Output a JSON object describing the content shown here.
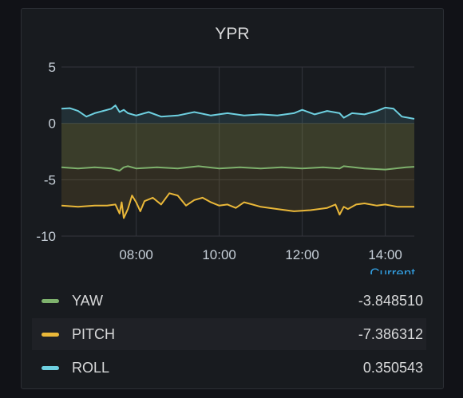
{
  "panel": {
    "title": "YPR"
  },
  "legend": {
    "header": "Current",
    "rows": [
      {
        "name": "YAW",
        "value": "-3.848510",
        "color": "#7eb26d"
      },
      {
        "name": "PITCH",
        "value": "-7.386312",
        "color": "#eab839"
      },
      {
        "name": "ROLL",
        "value": "0.350543",
        "color": "#6ed0e0"
      }
    ]
  },
  "chart_data": {
    "type": "line",
    "title": "YPR",
    "xlabel": "",
    "ylabel": "",
    "xlim": [
      6.2,
      14.7
    ],
    "ylim": [
      -10,
      5
    ],
    "x_ticks": [
      "08:00",
      "10:00",
      "12:00",
      "14:00"
    ],
    "x_tick_values": [
      8,
      10,
      12,
      14
    ],
    "y_ticks": [
      "5",
      "0",
      "-5",
      "-10"
    ],
    "y_tick_values": [
      5,
      0,
      -5,
      -10
    ],
    "grid": true,
    "legend_position": "bottom",
    "series": [
      {
        "name": "ROLL",
        "color": "#6ed0e0",
        "x": [
          6.2,
          6.4,
          6.6,
          6.8,
          7.0,
          7.2,
          7.4,
          7.5,
          7.6,
          7.7,
          7.8,
          8.0,
          8.3,
          8.6,
          9.0,
          9.4,
          9.8,
          10.2,
          10.6,
          11.0,
          11.4,
          11.8,
          12.0,
          12.3,
          12.6,
          12.9,
          13.0,
          13.2,
          13.5,
          13.8,
          14.0,
          14.2,
          14.4,
          14.7
        ],
        "y": [
          1.3,
          1.35,
          1.1,
          0.6,
          0.9,
          1.1,
          1.3,
          1.6,
          1.0,
          1.2,
          0.9,
          0.7,
          1.0,
          0.6,
          0.7,
          1.0,
          0.7,
          0.9,
          0.7,
          0.8,
          0.7,
          0.9,
          1.2,
          0.8,
          1.1,
          0.9,
          0.5,
          0.9,
          0.8,
          1.1,
          1.4,
          1.3,
          0.6,
          0.4
        ]
      },
      {
        "name": "YAW",
        "color": "#7eb26d",
        "x": [
          6.2,
          6.6,
          7.0,
          7.4,
          7.6,
          7.7,
          7.8,
          8.0,
          8.5,
          9.0,
          9.5,
          10.0,
          10.5,
          11.0,
          11.5,
          12.0,
          12.5,
          12.9,
          13.0,
          13.5,
          14.0,
          14.5,
          14.7
        ],
        "y": [
          -3.9,
          -4.0,
          -3.9,
          -4.0,
          -4.2,
          -3.9,
          -3.8,
          -4.0,
          -3.9,
          -4.0,
          -3.8,
          -4.0,
          -3.9,
          -4.0,
          -3.9,
          -4.0,
          -3.9,
          -4.0,
          -3.8,
          -4.0,
          -4.1,
          -3.9,
          -3.85
        ]
      },
      {
        "name": "PITCH",
        "color": "#eab839",
        "x": [
          6.2,
          6.6,
          7.0,
          7.3,
          7.5,
          7.6,
          7.65,
          7.7,
          7.8,
          7.9,
          8.0,
          8.1,
          8.2,
          8.4,
          8.6,
          8.8,
          9.0,
          9.2,
          9.4,
          9.6,
          9.8,
          10.0,
          10.2,
          10.4,
          10.6,
          10.8,
          11.0,
          11.4,
          11.8,
          12.2,
          12.6,
          12.8,
          12.9,
          13.0,
          13.1,
          13.3,
          13.5,
          13.8,
          14.0,
          14.3,
          14.7
        ],
        "y": [
          -7.3,
          -7.4,
          -7.3,
          -7.3,
          -7.2,
          -8.0,
          -7.0,
          -8.4,
          -7.6,
          -6.4,
          -7.0,
          -7.8,
          -6.9,
          -6.6,
          -7.2,
          -6.2,
          -6.4,
          -7.3,
          -6.8,
          -6.6,
          -7.0,
          -7.3,
          -7.2,
          -7.5,
          -7.0,
          -7.2,
          -7.4,
          -7.6,
          -7.8,
          -7.7,
          -7.5,
          -7.2,
          -8.1,
          -7.4,
          -7.6,
          -7.2,
          -7.1,
          -7.3,
          -7.2,
          -7.4,
          -7.4
        ]
      }
    ]
  }
}
